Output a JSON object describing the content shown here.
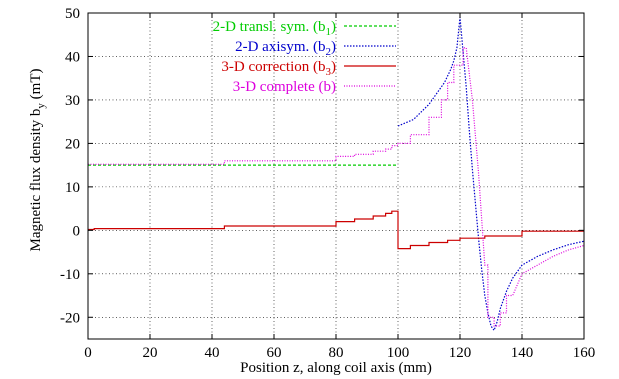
{
  "chart_data": {
    "type": "line",
    "xlabel": "Position z, along coil axis (mm)",
    "ylabel": "Magnetic flux density b",
    "ylabel_sub": "y",
    "ylabel_unit": " (mT)",
    "xlim": [
      0,
      160
    ],
    "ylim": [
      -25,
      50
    ],
    "xticks": [
      0,
      20,
      40,
      60,
      80,
      100,
      120,
      140,
      160
    ],
    "yticks": [
      -20,
      -10,
      0,
      10,
      20,
      30,
      40,
      50
    ],
    "grid": true,
    "legend_position": "top-left",
    "series": [
      {
        "name": "2-D transl. sym. (b",
        "name_sub": "1",
        "name_tail": ")",
        "color": "#00cc00",
        "dash": "3,2",
        "x": [
          0,
          100
        ],
        "y": [
          15,
          15
        ]
      },
      {
        "name": "2-D axisym. (b",
        "name_sub": "2",
        "name_tail": ")",
        "color": "#0000cc",
        "dash": "1.5,1.5",
        "x": [
          100,
          105,
          110,
          113,
          115,
          117,
          118,
          119,
          120,
          121,
          122,
          123,
          124,
          125,
          126,
          127,
          128,
          129,
          130,
          131,
          132,
          133,
          134,
          135,
          137,
          140,
          145,
          150,
          155,
          160
        ],
        "y": [
          24,
          25.5,
          29,
          32,
          34,
          37,
          39,
          42,
          49,
          41,
          33,
          23,
          14,
          6,
          -2,
          -9,
          -15,
          -19,
          -22,
          -23,
          -21,
          -18,
          -16,
          -14,
          -11,
          -8,
          -6,
          -4.5,
          -3.3,
          -2.5
        ]
      },
      {
        "name": "3-D correction (b",
        "name_sub": "3",
        "name_tail": ")",
        "color": "#cc0000",
        "dash": "",
        "x": [
          0,
          2,
          2,
          44,
          44,
          80,
          80,
          86,
          86,
          92,
          92,
          96,
          96,
          98,
          98,
          100,
          100,
          104,
          104,
          110,
          110,
          116,
          116,
          120,
          120,
          128,
          128,
          140,
          140,
          160
        ],
        "y": [
          0.2,
          0.2,
          0.4,
          0.4,
          1,
          1,
          2,
          2,
          2.6,
          2.6,
          3.3,
          3.3,
          3.9,
          3.9,
          4.4,
          4.4,
          -4.2,
          -4.2,
          -3.5,
          -3.5,
          -2.8,
          -2.8,
          -2.3,
          -2.3,
          -1.8,
          -1.8,
          -1.3,
          -1.3,
          -0.2,
          -0.2
        ]
      },
      {
        "name": "3-D complete (b)",
        "name_sub": "",
        "name_tail": "",
        "color": "#dd00dd",
        "dash": "1,1.5",
        "x": [
          0,
          44,
          44,
          80,
          80,
          86,
          86,
          92,
          92,
          96,
          96,
          98,
          98,
          100,
          100,
          104,
          104,
          110,
          110,
          114,
          114,
          116,
          116,
          118,
          118,
          121,
          121,
          122,
          124,
          126,
          128,
          129,
          129,
          131,
          131,
          133,
          133,
          135,
          135,
          137,
          140,
          145,
          150,
          155,
          160
        ],
        "y": [
          15.2,
          15.2,
          16,
          16,
          17,
          17,
          17.5,
          17.5,
          18.2,
          18.2,
          18.7,
          18.7,
          19.5,
          19.5,
          20,
          20,
          22,
          22,
          26,
          26,
          30,
          30,
          34,
          34,
          38,
          38,
          42,
          42,
          30,
          13,
          -8,
          -8,
          -20,
          -20,
          -22,
          -22,
          -19,
          -19,
          -15,
          -15,
          -10,
          -8,
          -6,
          -4.5,
          -3.5
        ]
      }
    ]
  }
}
